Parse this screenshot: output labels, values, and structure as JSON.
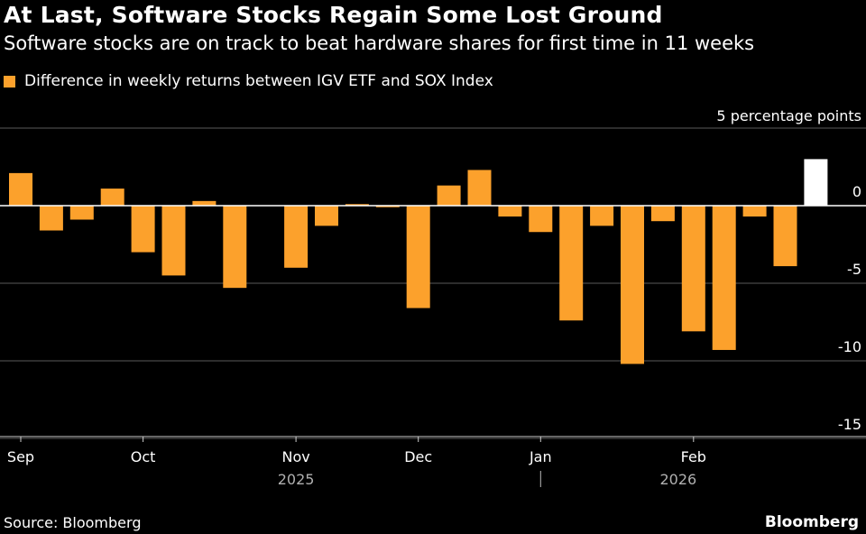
{
  "chart_data": {
    "type": "bar",
    "title": "At Last, Software Stocks Regain Some Lost Ground",
    "subtitle": "Software stocks are on track to beat hardware shares for first time in 11 weeks",
    "legend": [
      {
        "label": "Difference in weekly returns between IGV ETF and SOX Index",
        "color": "#fca12c"
      }
    ],
    "ylabel": "5 percentage points",
    "ylim": [
      -15,
      5
    ],
    "yticks": [
      "0",
      "-5",
      "-10",
      "-15"
    ],
    "yticks_values": [
      0,
      -5,
      -10,
      -15
    ],
    "grid": true,
    "xlabels": [
      {
        "label": "Sep",
        "week": 0
      },
      {
        "label": "Oct",
        "week": 4
      },
      {
        "label": "Nov",
        "week": 9
      },
      {
        "label": "Dec",
        "week": 13
      },
      {
        "label": "Jan",
        "week": 17
      },
      {
        "label": "Feb",
        "week": 22
      }
    ],
    "year_labels": [
      {
        "label": "2025",
        "week": 9
      },
      {
        "label": "2026",
        "week": 21.5
      }
    ],
    "series": [
      {
        "values": [
          2.1,
          -1.6,
          -0.9,
          1.1,
          -3.0,
          -4.5,
          0.3,
          -5.3,
          null,
          -4.0,
          -1.3,
          0.1,
          -0.1,
          -6.6,
          1.3,
          2.3,
          -0.7,
          -1.7,
          -7.4,
          -1.3,
          -10.2,
          -1.0,
          -8.1,
          -9.3,
          -0.7,
          -3.9,
          3.0
        ],
        "highlight_last": true,
        "color": "#fca12c",
        "highlight_color": "#ffffff"
      }
    ]
  },
  "footer": {
    "source": "Source: Bloomberg",
    "brand": "Bloomberg"
  }
}
